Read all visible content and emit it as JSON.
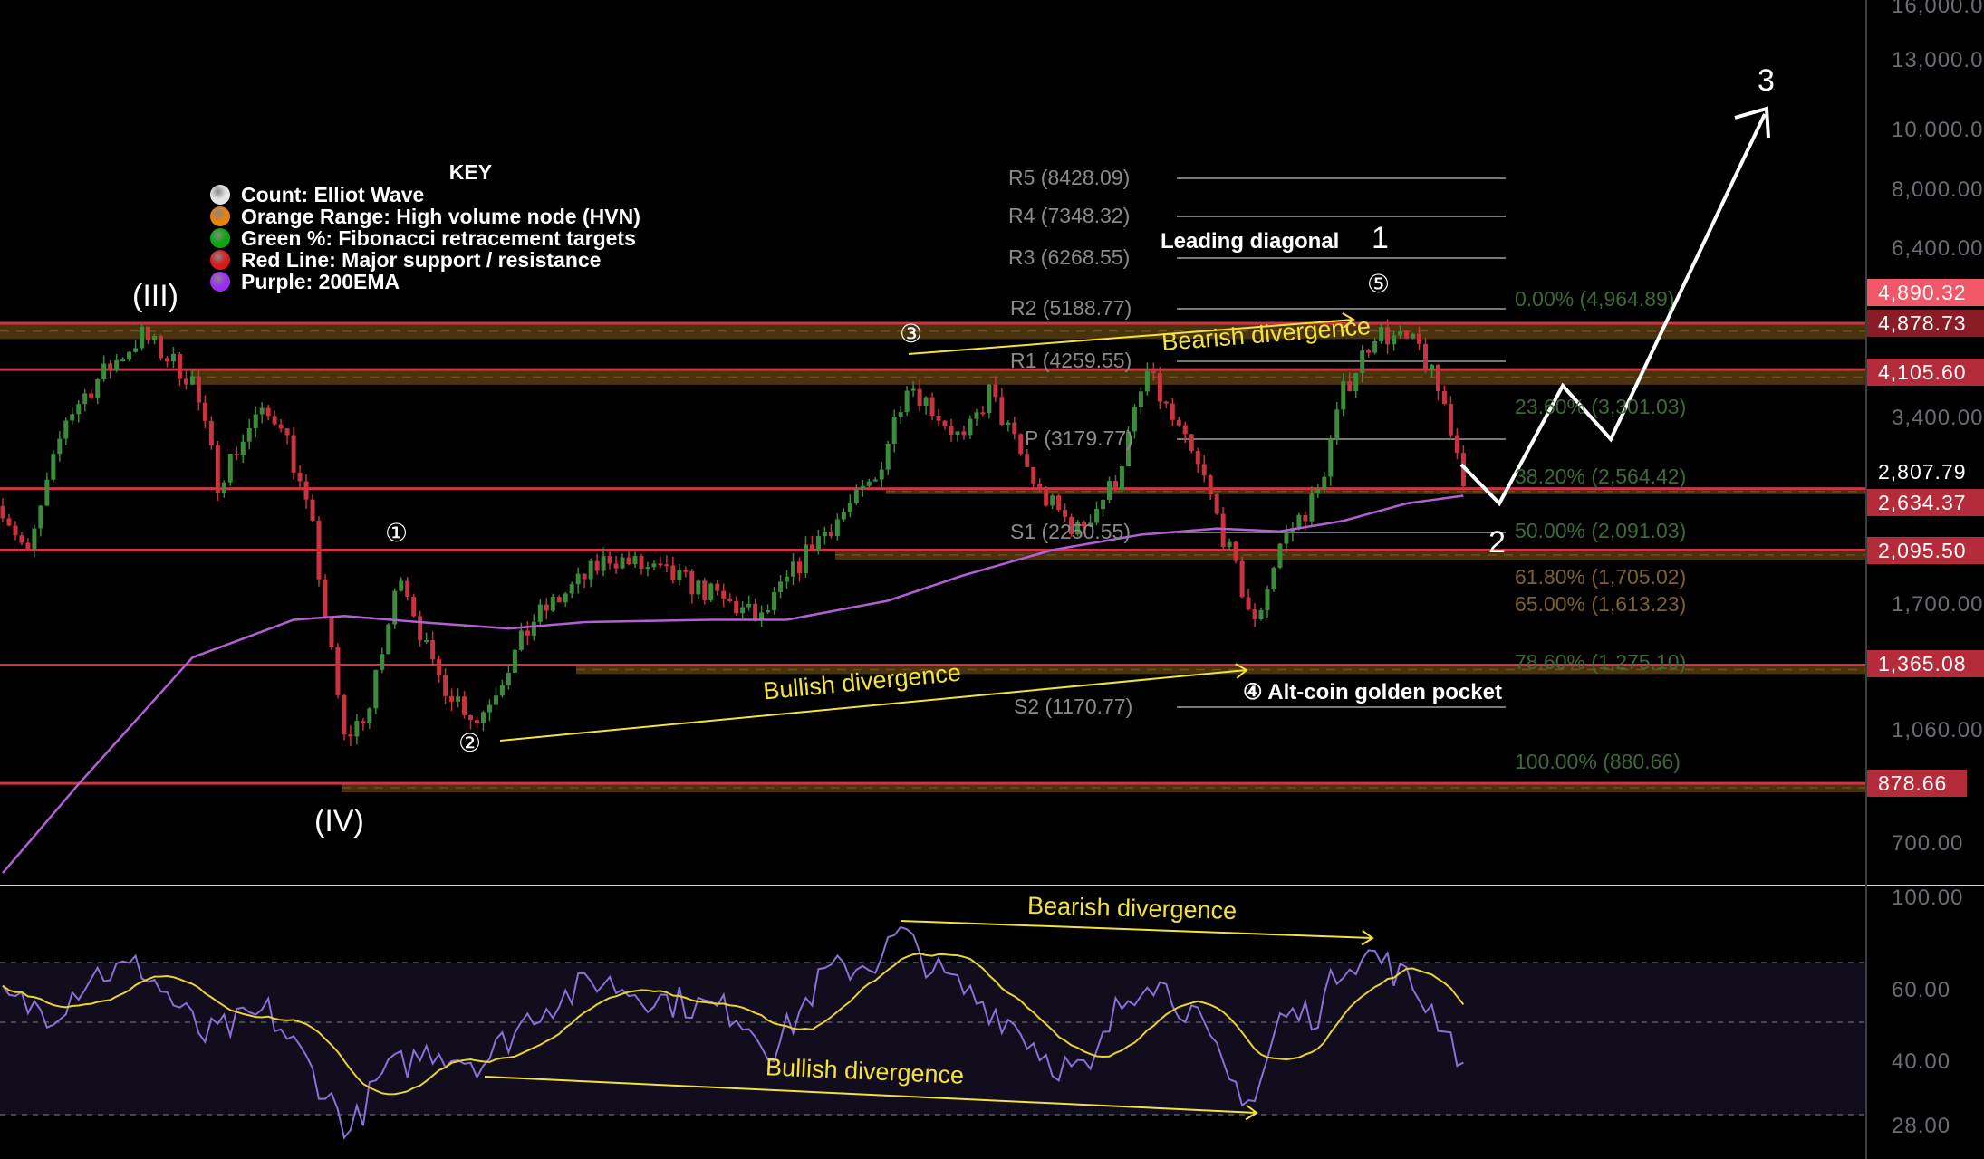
{
  "chart_data": {
    "type": "candlestick",
    "scale": "log",
    "y_ticks": [
      "16,000.00",
      "13,000.00",
      "10,000.00",
      "8,000.00",
      "6,400.00",
      "3,400.00",
      "1,700.00",
      "1,060.00",
      "700.00"
    ],
    "price_labels": [
      {
        "value": "4,890.32",
        "color": "#f25767"
      },
      {
        "value": "4,878.73",
        "color": "#8a1c26"
      },
      {
        "value": "4,105.60",
        "color": "#b62b3a"
      },
      {
        "value": "2,807.79",
        "color": "#000000"
      },
      {
        "value": "2,634.37",
        "color": "#b62b3a"
      },
      {
        "value": "2,095.50",
        "color": "#b62b3a"
      },
      {
        "value": "1,365.08",
        "color": "#b62b3a"
      },
      {
        "value": "878.66",
        "color": "#b62b3a"
      }
    ],
    "support_resistance": [
      4878.73,
      4105.6,
      2634.37,
      2095.5,
      1365.08,
      878.66
    ],
    "hvn_ranges": [
      [
        4878.73,
        4600
      ],
      [
        4105.6,
        3880
      ],
      [
        2634.37,
        2580
      ],
      [
        2095.5,
        2020
      ],
      [
        1365.08,
        1320
      ],
      [
        878.66,
        850
      ]
    ],
    "price_path": [
      [
        0,
        2470
      ],
      [
        4,
        2046
      ],
      [
        10,
        3434
      ],
      [
        15,
        3955
      ],
      [
        22,
        4665
      ],
      [
        30,
        3955
      ],
      [
        34,
        2715
      ],
      [
        40,
        3434
      ],
      [
        44,
        3434
      ],
      [
        49,
        2247
      ],
      [
        54,
        1033
      ],
      [
        58,
        1162
      ],
      [
        63,
        1951
      ],
      [
        68,
        1339
      ],
      [
        75,
        1109
      ],
      [
        84,
        1616
      ],
      [
        96,
        2046
      ],
      [
        108,
        1862
      ],
      [
        120,
        1616
      ],
      [
        128,
        2144
      ],
      [
        138,
        2715
      ],
      [
        143,
        3955
      ],
      [
        152,
        3127
      ],
      [
        156,
        3776
      ],
      [
        164,
        2589
      ],
      [
        170,
        2247
      ],
      [
        176,
        2715
      ],
      [
        181,
        4053
      ],
      [
        190,
        2715
      ],
      [
        198,
        1579
      ],
      [
        202,
        2144
      ],
      [
        208,
        2589
      ],
      [
        212,
        3776
      ],
      [
        217,
        4737
      ],
      [
        224,
        4452
      ],
      [
        228,
        3598
      ],
      [
        231,
        2777
      ]
    ],
    "ema200": [
      [
        0,
        629
      ],
      [
        12,
        876
      ],
      [
        30,
        1404
      ],
      [
        46,
        1616
      ],
      [
        54,
        1639
      ],
      [
        66,
        1602
      ],
      [
        80,
        1564
      ],
      [
        92,
        1602
      ],
      [
        112,
        1616
      ],
      [
        124,
        1616
      ],
      [
        140,
        1735
      ],
      [
        152,
        1908
      ],
      [
        166,
        2096
      ],
      [
        180,
        2219
      ],
      [
        192,
        2271
      ],
      [
        202,
        2247
      ],
      [
        212,
        2336
      ],
      [
        222,
        2493
      ],
      [
        231,
        2566
      ]
    ],
    "rsi": {
      "axis_ticks": [
        "100.00",
        "60.00",
        "40.00",
        "28.00"
      ],
      "values": [
        [
          0,
          60.4
        ],
        [
          8,
          57
        ],
        [
          14,
          67
        ],
        [
          22,
          68.7
        ],
        [
          32,
          50.4
        ],
        [
          42,
          57
        ],
        [
          48,
          43.8
        ],
        [
          55,
          25.5
        ],
        [
          60,
          40.5
        ],
        [
          68,
          47.1
        ],
        [
          76,
          43.8
        ],
        [
          84,
          57
        ],
        [
          94,
          65.4
        ],
        [
          104,
          60.4
        ],
        [
          116,
          57
        ],
        [
          122,
          47.1
        ],
        [
          130,
          67
        ],
        [
          138,
          70.4
        ],
        [
          142,
          77.7
        ],
        [
          148,
          67
        ],
        [
          154,
          60.4
        ],
        [
          160,
          53.7
        ],
        [
          166,
          43.8
        ],
        [
          172,
          40.5
        ],
        [
          176,
          57
        ],
        [
          181,
          67
        ],
        [
          188,
          57
        ],
        [
          194,
          38.8
        ],
        [
          198,
          33.8
        ],
        [
          202,
          55.4
        ],
        [
          208,
          57
        ],
        [
          212,
          70.4
        ],
        [
          217,
          72
        ],
        [
          222,
          65.4
        ],
        [
          228,
          53.7
        ],
        [
          231,
          43.1
        ]
      ]
    },
    "pivots": [
      {
        "label": "R5 (8428.09)",
        "value": 8428.09
      },
      {
        "label": "R4 (7348.32)",
        "value": 7348.32
      },
      {
        "label": "R3 (6268.55)",
        "value": 6268.55
      },
      {
        "label": "R2 (5188.77)",
        "value": 5188.77
      },
      {
        "label": "R1 (4259.55)",
        "value": 4259.55
      },
      {
        "label": "P (3179.77)",
        "value": 3179.77
      },
      {
        "label": "S1 (2250.55)",
        "value": 2250.55
      },
      {
        "label": "S2 (1170.77)",
        "value": 1170.77
      }
    ],
    "fib_levels": [
      "0.00% (4,964.89)",
      "23.60% (3,301.03)",
      "38.20% (2,564.42)",
      "50.00% (2,091.03)",
      "61.80% (1,705.02)",
      "65.00% (1,613.23)",
      "78.60% (1,275.10)",
      "100.00% (880.66)"
    ],
    "colors": {
      "up": "#3c8a3c",
      "down": "#c8333f",
      "sr_line": "#d03444",
      "hvn": "#4a320c",
      "ema": "#b45fd6",
      "rsi": "#8b6fd6",
      "rsi_ma": "#e8d430",
      "annotation": "#f3e23a"
    }
  },
  "key": {
    "title": "KEY",
    "items": [
      {
        "label": "Count: Elliot Wave",
        "color": "#e6e6e6"
      },
      {
        "label": "Orange Range: High volume node (HVN)",
        "color": "#e8820a"
      },
      {
        "label": "Green %: Fibonacci retracement targets",
        "color": "#0aa80a"
      },
      {
        "label": "Red Line: Major support / resistance",
        "color": "#d81c1c"
      },
      {
        "label": "Purple: 200EMA",
        "color": "#9b2ef0"
      }
    ]
  },
  "annotations": {
    "wave_III": "(III)",
    "wave_IV": "(IV)",
    "c1": "①",
    "c2": "②",
    "c3": "③",
    "c5": "⑤",
    "c4_pocket": "④ Alt-coin golden pocket",
    "leading_diagonal": "Leading diagonal",
    "w1": "1",
    "w2": "2",
    "w3": "3",
    "bearish_price": "Bearish divergence",
    "bullish_price": "Bullish divergence",
    "bearish_rsi": "Bearish divergence",
    "bullish_rsi": "Bullish divergence"
  }
}
